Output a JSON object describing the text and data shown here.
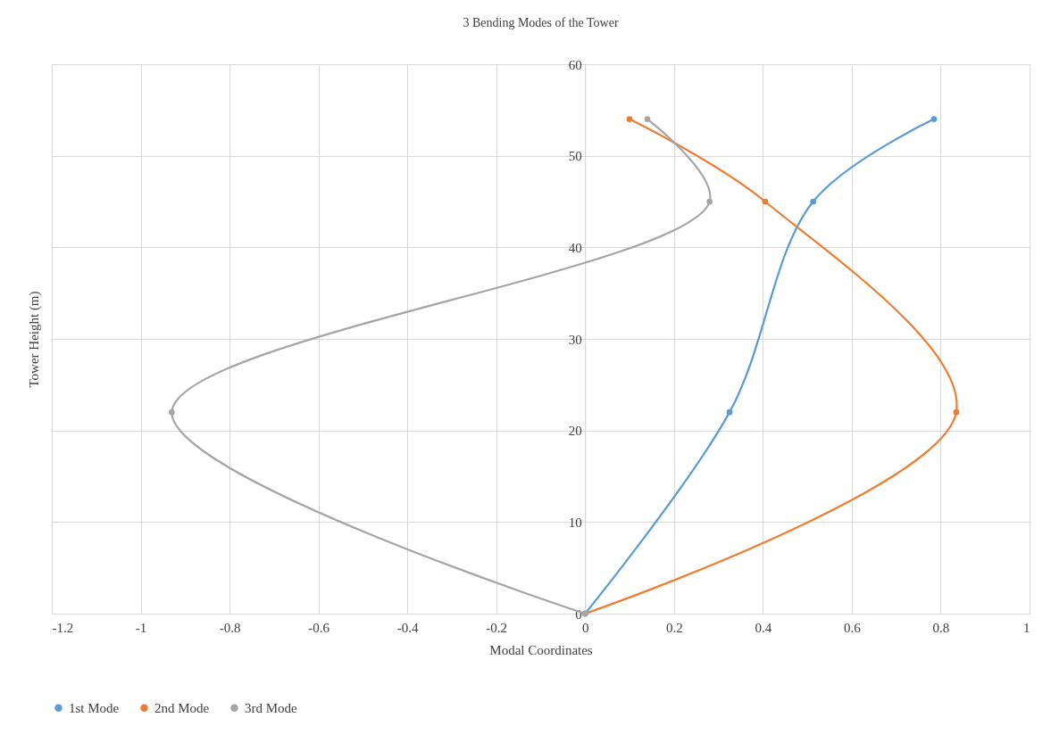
{
  "chart_data": {
    "type": "line",
    "title": "3 Bending  Modes of the Tower",
    "xlabel": "Modal Coordinates",
    "ylabel": "Tower Height  (m)",
    "xlim": [
      -1.2,
      1
    ],
    "ylim": [
      0,
      60
    ],
    "xticks": [
      -1.2,
      -1,
      -0.8,
      -0.6,
      -0.4,
      -0.2,
      0,
      0.2,
      0.4,
      0.6,
      0.8,
      1
    ],
    "yticks": [
      0,
      10,
      20,
      30,
      40,
      50,
      60
    ],
    "grid": true,
    "legend": "bottom",
    "marker": "circle",
    "series": [
      {
        "name": "1st Mode",
        "color": "#5b9bd5",
        "x": [
          0,
          0.325,
          0.513,
          0.785
        ],
        "values": [
          0,
          22,
          45,
          54
        ]
      },
      {
        "name": "2nd Mode",
        "color": "#ed7d31",
        "x": [
          0,
          0.835,
          0.405,
          0.1
        ],
        "values": [
          0,
          22,
          45,
          54
        ]
      },
      {
        "name": "3rd Mode",
        "color": "#a5a5a5",
        "x": [
          0,
          -0.93,
          0.28,
          0.14
        ],
        "values": [
          0,
          22,
          45,
          54
        ]
      }
    ]
  }
}
